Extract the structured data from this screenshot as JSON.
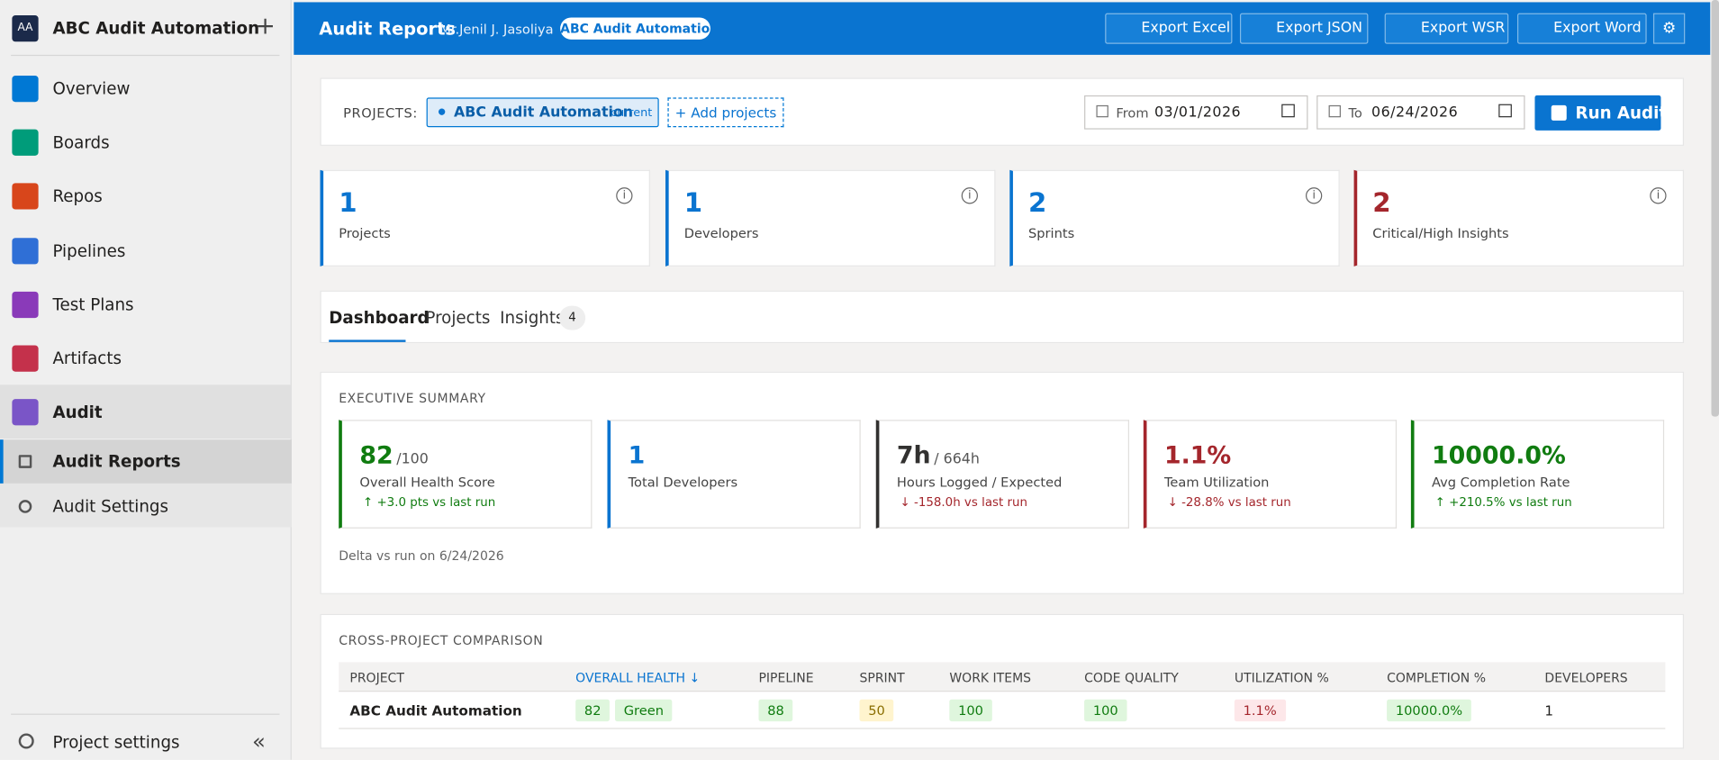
{
  "sidebar": {
    "org_initials": "AA",
    "org_name": "ABC Audit Automation",
    "items": [
      "Overview",
      "Boards",
      "Repos",
      "Pipelines",
      "Test Plans",
      "Artifacts",
      "Audit"
    ],
    "sub_items": [
      "Audit Reports",
      "Audit Settings"
    ],
    "footer": "Project settings"
  },
  "header": {
    "title": "Audit Reports",
    "user": "Mr.Jenil J. Jasoliya",
    "project_badge": "ABC Audit Automation",
    "buttons": [
      "Export Excel",
      "Export JSON",
      "Export WSR",
      "Export Word"
    ]
  },
  "filters": {
    "label": "PROJECTS:",
    "project": "ABC Audit Automation",
    "project_tag": "current",
    "add": "+ Add projects",
    "from_label": "From",
    "from": "03/01/2026",
    "to_label": "To",
    "to": "06/24/2026",
    "run": "Run Audit"
  },
  "stats": [
    {
      "value": 1,
      "label": "Projects"
    },
    {
      "value": 1,
      "label": "Developers"
    },
    {
      "value": 2,
      "label": "Sprints"
    },
    {
      "value": 2,
      "label": "Critical/High Insights"
    }
  ],
  "tabs": {
    "items": [
      "Dashboard",
      "Projects",
      "Insights"
    ],
    "insights_count": 4
  },
  "summary": {
    "title": "EXECUTIVE SUMMARY",
    "cards": [
      {
        "value": "82",
        "suffix": "/100",
        "label": "Overall Health Score",
        "delta": "↑ +3.0 pts vs last run"
      },
      {
        "value": "1",
        "label": "Total Developers"
      },
      {
        "value": "7h",
        "suffix": "/ 664h",
        "label": "Hours Logged / Expected",
        "delta": "↓ -158.0h vs last run"
      },
      {
        "value": "1.1%",
        "label": "Team Utilization",
        "delta": "↓ -28.8% vs last run"
      },
      {
        "value": "10000.0%",
        "label": "Avg Completion Rate",
        "delta": "↑ +210.5% vs last run"
      }
    ],
    "note": "Delta vs run on 6/24/2026"
  },
  "comparison": {
    "title": "CROSS-PROJECT COMPARISON",
    "columns": [
      "PROJECT",
      "OVERALL HEALTH ↓",
      "PIPELINE",
      "SPRINT",
      "WORK ITEMS",
      "CODE QUALITY",
      "UTILIZATION %",
      "COMPLETION %",
      "DEVELOPERS"
    ],
    "rows": [
      {
        "project": "ABC Audit Automation",
        "health": "82",
        "health_status": "Green",
        "pipeline": "88",
        "sprint": "50",
        "work_items": "100",
        "code_quality": "100",
        "utilization": "1.1%",
        "completion": "10000.0%",
        "developers": "1"
      }
    ]
  }
}
